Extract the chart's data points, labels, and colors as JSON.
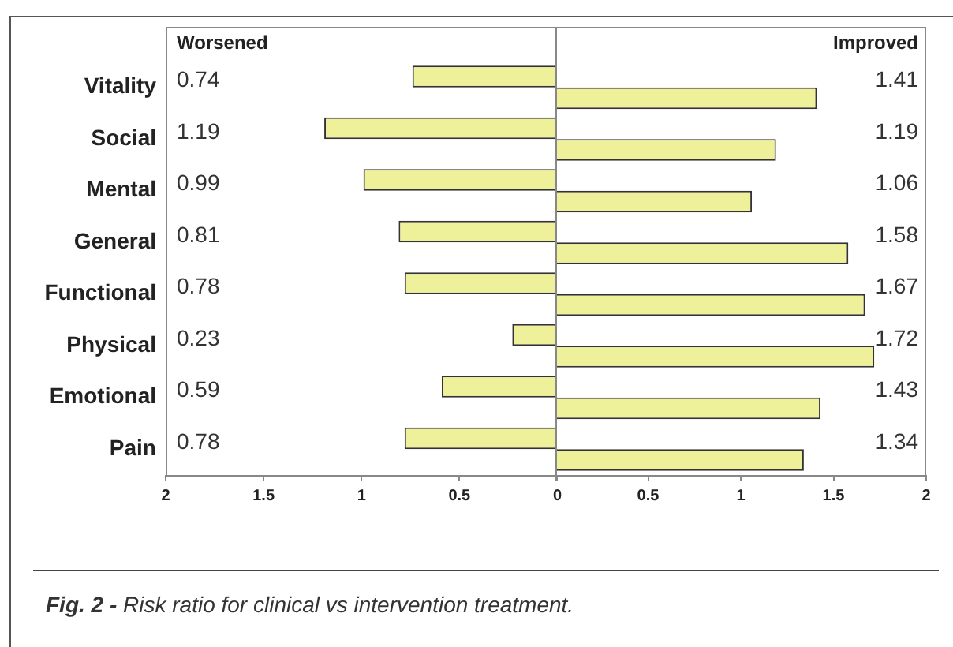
{
  "chart_data": [
    {
      "type": "bar",
      "orientation": "horizontal",
      "categories": [
        "Vitality",
        "Social",
        "Mental",
        "General",
        "Functional",
        "Physical",
        "Emotional",
        "Pain"
      ],
      "series": [
        {
          "color": "#eef09a",
          "values": [
            0.74,
            1.19,
            0.99,
            0.81,
            0.78,
            0.23,
            0.59,
            0.78
          ],
          "value_labels": [
            "0.74",
            "1.19",
            "0.99",
            "0.81",
            "0.78",
            "0.23",
            "0.59",
            "0.78"
          ]
        }
      ],
      "xlim": [
        2,
        0
      ],
      "xticks": [
        2,
        1.5,
        1,
        0.5,
        0
      ],
      "grid": false,
      "legend": false,
      "annotations": [
        "Worsened"
      ]
    },
    {
      "type": "bar",
      "orientation": "horizontal",
      "categories": [
        null,
        null,
        null,
        null,
        null,
        null,
        null,
        null
      ],
      "series": [
        {
          "color": "#eef09a",
          "values": [
            1.41,
            1.19,
            1.06,
            1.58,
            1.67,
            1.72,
            1.43,
            1.34
          ],
          "value_labels": [
            "1.41",
            "1.19",
            "1.06",
            "1.58",
            "1.67",
            "1.72",
            "1.43",
            "1.34"
          ]
        }
      ],
      "xlim": [
        0,
        2
      ],
      "xticks": [
        {
          "value": 0,
          "label": null
        },
        0.5,
        1,
        1.5,
        2
      ],
      "tick_labels": "x",
      "grid": false,
      "legend": false,
      "annotations": [
        "Improved",
        "Fig. 2 -",
        "Risk ratio for clinical vs intervention treatment."
      ]
    }
  ]
}
